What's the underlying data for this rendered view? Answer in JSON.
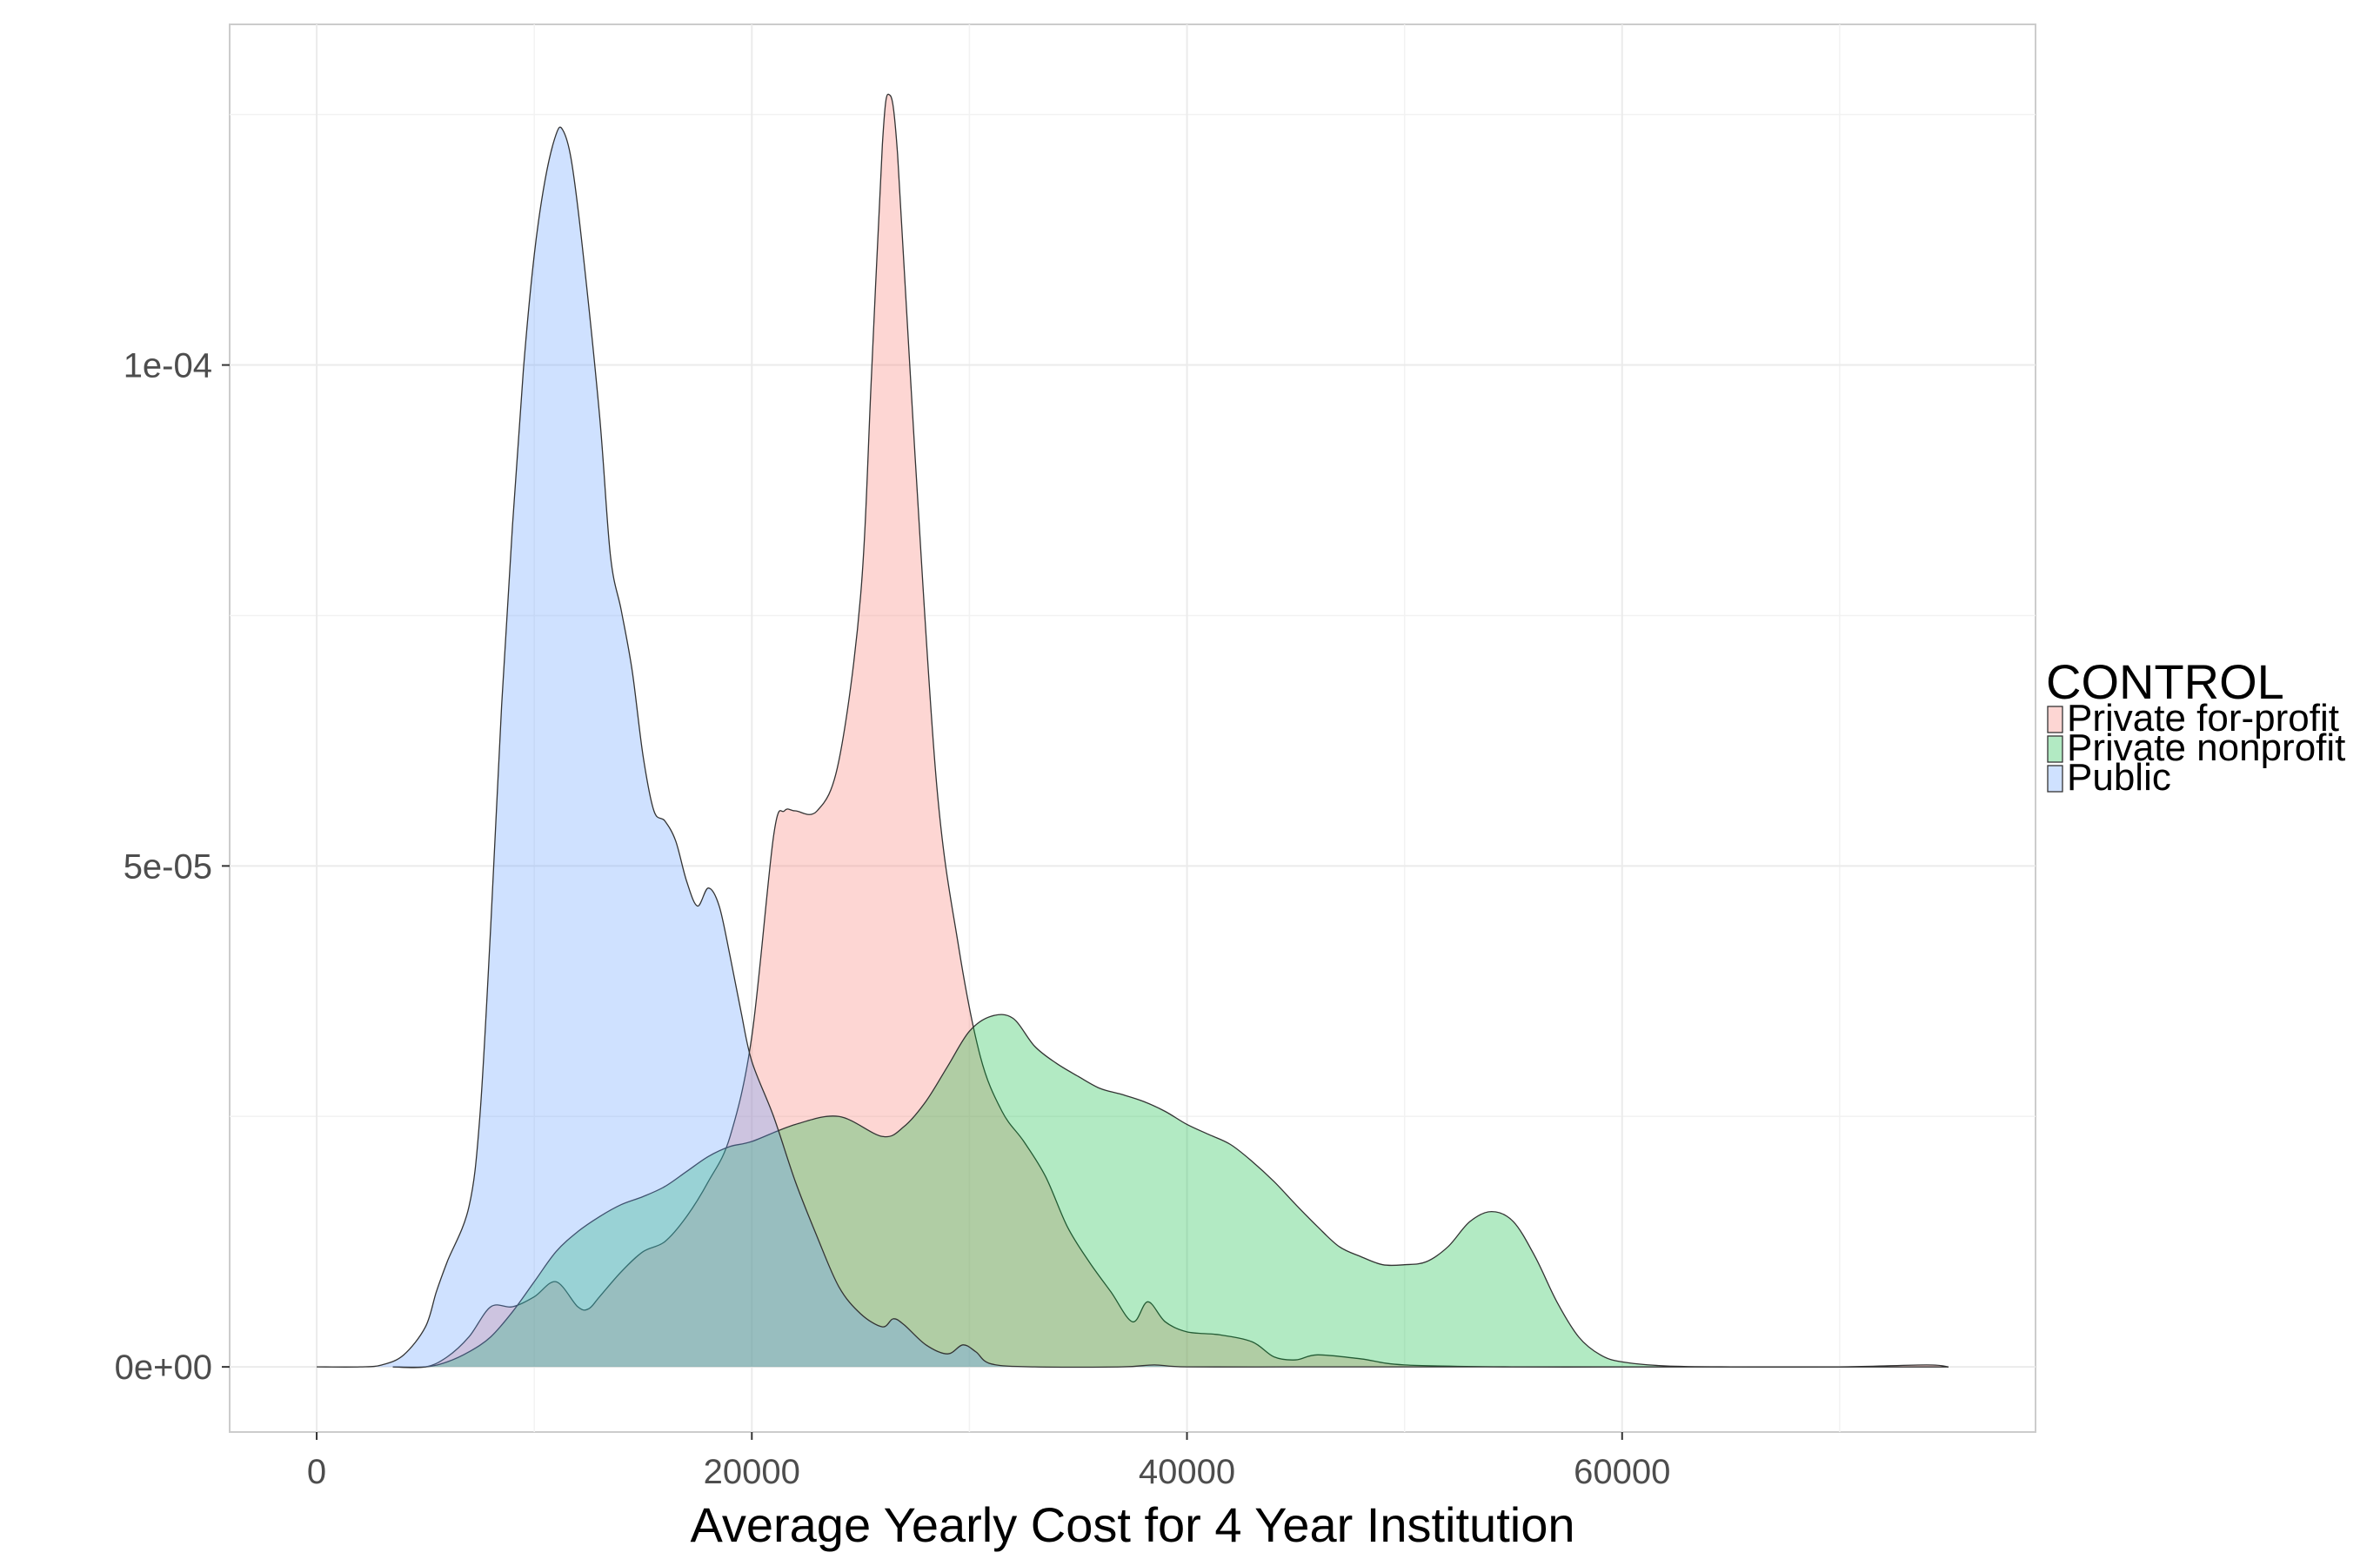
{
  "chart_data": {
    "type": "area",
    "xlabel": "Average Yearly Cost for 4 Year Institution",
    "ylabel": "",
    "xlim": [
      -4000,
      79000
    ],
    "ylim": [
      -6.5e-06,
      0.000134
    ],
    "x_ticks": [
      0,
      20000,
      40000,
      60000
    ],
    "x_tick_labels": [
      "0",
      "20000",
      "40000",
      "60000"
    ],
    "y_ticks": [
      0,
      5e-05,
      0.0001
    ],
    "y_tick_labels": [
      "0e+00",
      "5e-05",
      "1e-04"
    ],
    "grid": true,
    "legend": {
      "title": "CONTROL",
      "position": "right"
    },
    "series": [
      {
        "name": "Private for-profit",
        "color": "#F8766D",
        "points": [
          [
            3500,
            0
          ],
          [
            5000,
            0
          ],
          [
            6000,
            1e-06
          ],
          [
            7000,
            3e-06
          ],
          [
            8000,
            6e-06
          ],
          [
            9000,
            6e-06
          ],
          [
            10000,
            7e-06
          ],
          [
            11000,
            8.5e-06
          ],
          [
            12000,
            6e-06
          ],
          [
            12500,
            5.8e-06
          ],
          [
            13000,
            7e-06
          ],
          [
            14000,
            9.5e-06
          ],
          [
            15000,
            1.15e-05
          ],
          [
            16000,
            1.25e-05
          ],
          [
            17000,
            1.5e-05
          ],
          [
            18000,
            1.85e-05
          ],
          [
            19000,
            2.3e-05
          ],
          [
            20000,
            3.3e-05
          ],
          [
            21000,
            5.3e-05
          ],
          [
            21500,
            5.55e-05
          ],
          [
            22000,
            5.55e-05
          ],
          [
            23000,
            5.55e-05
          ],
          [
            24000,
            6.05e-05
          ],
          [
            25000,
            7.7e-05
          ],
          [
            25500,
            9.9e-05
          ],
          [
            26000,
            0.000122
          ],
          [
            26300,
            0.000127
          ],
          [
            26700,
            0.000121
          ],
          [
            27500,
            9.1e-05
          ],
          [
            28500,
            5.8e-05
          ],
          [
            29500,
            4.2e-05
          ],
          [
            30500,
            3.1e-05
          ],
          [
            31500,
            2.55e-05
          ],
          [
            32500,
            2.25e-05
          ],
          [
            33500,
            1.9e-05
          ],
          [
            34500,
            1.4e-05
          ],
          [
            35500,
            1.05e-05
          ],
          [
            36500,
            7.5e-06
          ],
          [
            37500,
            4.5e-06
          ],
          [
            38200,
            6.5e-06
          ],
          [
            39000,
            4.5e-06
          ],
          [
            40000,
            3.5e-06
          ],
          [
            41500,
            3.2e-06
          ],
          [
            43000,
            2.5e-06
          ],
          [
            44000,
            1e-06
          ],
          [
            45000,
            7e-07
          ],
          [
            46000,
            1.2e-06
          ],
          [
            48000,
            8e-07
          ],
          [
            50000,
            2e-07
          ],
          [
            55000,
            0
          ],
          [
            60000,
            0
          ],
          [
            65000,
            0
          ],
          [
            70000,
            0
          ],
          [
            74000,
            2e-07
          ],
          [
            75000,
            0
          ]
        ]
      },
      {
        "name": "Private nonprofit",
        "color": "#00BA38",
        "points": [
          [
            3500,
            0
          ],
          [
            5000,
            0
          ],
          [
            6000,
            5e-07
          ],
          [
            7000,
            1.5e-06
          ],
          [
            8000,
            3e-06
          ],
          [
            9000,
            5.5e-06
          ],
          [
            10000,
            8.5e-06
          ],
          [
            11000,
            1.15e-05
          ],
          [
            12000,
            1.35e-05
          ],
          [
            13000,
            1.5e-05
          ],
          [
            14000,
            1.62e-05
          ],
          [
            15000,
            1.7e-05
          ],
          [
            16000,
            1.8e-05
          ],
          [
            17000,
            1.95e-05
          ],
          [
            18000,
            2.1e-05
          ],
          [
            19000,
            2.2e-05
          ],
          [
            20000,
            2.25e-05
          ],
          [
            22000,
            2.42e-05
          ],
          [
            24000,
            2.5e-05
          ],
          [
            26000,
            2.3e-05
          ],
          [
            27000,
            2.4e-05
          ],
          [
            28000,
            2.65e-05
          ],
          [
            29000,
            3e-05
          ],
          [
            30000,
            3.35e-05
          ],
          [
            31000,
            3.5e-05
          ],
          [
            32000,
            3.48e-05
          ],
          [
            33000,
            3.2e-05
          ],
          [
            34000,
            3.03e-05
          ],
          [
            35000,
            2.9e-05
          ],
          [
            36000,
            2.78e-05
          ],
          [
            37000,
            2.72e-05
          ],
          [
            38000,
            2.65e-05
          ],
          [
            39000,
            2.55e-05
          ],
          [
            40000,
            2.42e-05
          ],
          [
            41000,
            2.32e-05
          ],
          [
            42000,
            2.22e-05
          ],
          [
            43000,
            2.05e-05
          ],
          [
            44000,
            1.85e-05
          ],
          [
            45000,
            1.62e-05
          ],
          [
            46000,
            1.4e-05
          ],
          [
            47000,
            1.2e-05
          ],
          [
            48000,
            1.1e-05
          ],
          [
            49000,
            1.02e-05
          ],
          [
            50000,
            1.02e-05
          ],
          [
            51000,
            1.05e-05
          ],
          [
            52000,
            1.2e-05
          ],
          [
            53000,
            1.45e-05
          ],
          [
            54000,
            1.55e-05
          ],
          [
            55000,
            1.45e-05
          ],
          [
            56000,
            1.1e-05
          ],
          [
            57000,
            6.5e-06
          ],
          [
            58000,
            3e-06
          ],
          [
            59000,
            1.2e-06
          ],
          [
            60000,
            5e-07
          ],
          [
            62000,
            1e-07
          ],
          [
            65000,
            0
          ],
          [
            70000,
            0
          ],
          [
            75000,
            0
          ]
        ]
      },
      {
        "name": "Public",
        "color": "#619CFF",
        "points": [
          [
            0,
            0
          ],
          [
            2000,
            0
          ],
          [
            3000,
            2e-07
          ],
          [
            4000,
            1.2e-06
          ],
          [
            5000,
            4e-06
          ],
          [
            5500,
            7.5e-06
          ],
          [
            6000,
            1.05e-05
          ],
          [
            7000,
            1.6e-05
          ],
          [
            7500,
            2.5e-05
          ],
          [
            8000,
            4.4e-05
          ],
          [
            8500,
            6.6e-05
          ],
          [
            9000,
            8.4e-05
          ],
          [
            9500,
            9.95e-05
          ],
          [
            10000,
            0.000111
          ],
          [
            10500,
            0.0001185
          ],
          [
            11000,
            0.000123
          ],
          [
            11300,
            0.0001235
          ],
          [
            11700,
            0.0001205
          ],
          [
            12200,
            0.000112
          ],
          [
            13000,
            9.5e-05
          ],
          [
            13500,
            8.1e-05
          ],
          [
            14000,
            7.55e-05
          ],
          [
            14500,
            6.95e-05
          ],
          [
            15000,
            6.1e-05
          ],
          [
            15500,
            5.55e-05
          ],
          [
            16000,
            5.45e-05
          ],
          [
            16500,
            5.25e-05
          ],
          [
            17000,
            4.85e-05
          ],
          [
            17500,
            4.6e-05
          ],
          [
            18000,
            4.78e-05
          ],
          [
            18500,
            4.6e-05
          ],
          [
            19000,
            4.1e-05
          ],
          [
            19500,
            3.55e-05
          ],
          [
            20000,
            3.05e-05
          ],
          [
            21000,
            2.5e-05
          ],
          [
            22000,
            1.85e-05
          ],
          [
            23000,
            1.3e-05
          ],
          [
            24000,
            8e-06
          ],
          [
            25000,
            5.3e-06
          ],
          [
            26000,
            4e-06
          ],
          [
            26500,
            4.8e-06
          ],
          [
            27000,
            4.2e-06
          ],
          [
            28000,
            2.2e-06
          ],
          [
            29000,
            1.3e-06
          ],
          [
            29700,
            2.2e-06
          ],
          [
            30300,
            1.5e-06
          ],
          [
            31000,
            3e-07
          ],
          [
            33000,
            0
          ],
          [
            37000,
            0
          ],
          [
            38500,
            2e-07
          ],
          [
            40000,
            0
          ],
          [
            45000,
            0
          ],
          [
            50000,
            0
          ],
          [
            55000,
            0
          ],
          [
            60000,
            0
          ],
          [
            65000,
            0
          ],
          [
            70000,
            0
          ],
          [
            75000,
            0
          ]
        ]
      }
    ]
  }
}
